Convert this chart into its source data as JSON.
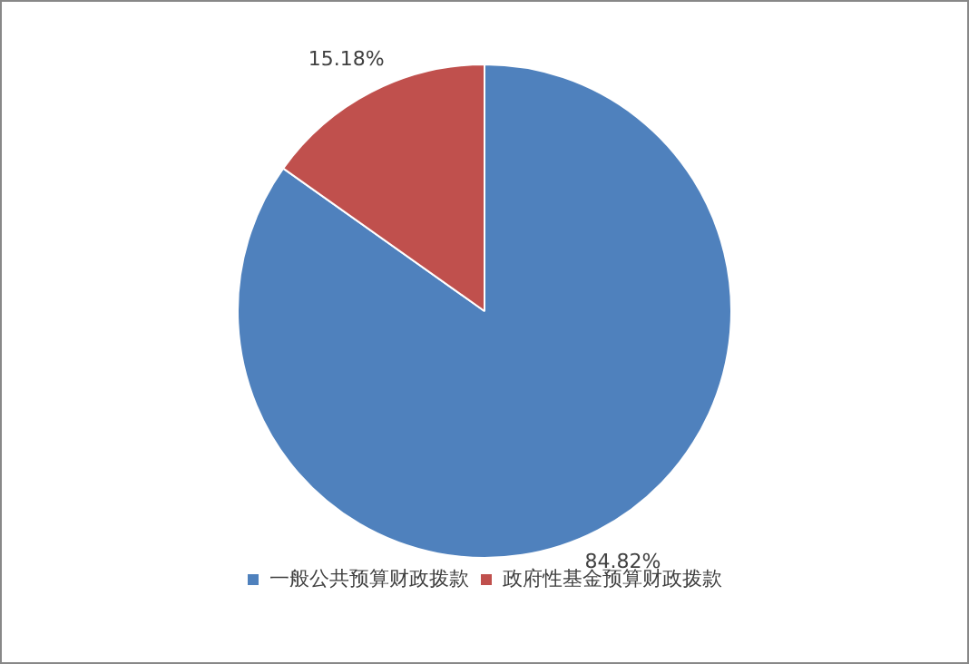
{
  "chart_data": {
    "type": "pie",
    "categories": [
      "一般公共预算财政拨款",
      "政府性基金预算财政拨款"
    ],
    "values": [
      84.82,
      15.18
    ],
    "colors": [
      "#4f81bd",
      "#c0504d"
    ],
    "value_labels": [
      "84.82%",
      "15.18%"
    ],
    "legend": "bottom"
  }
}
